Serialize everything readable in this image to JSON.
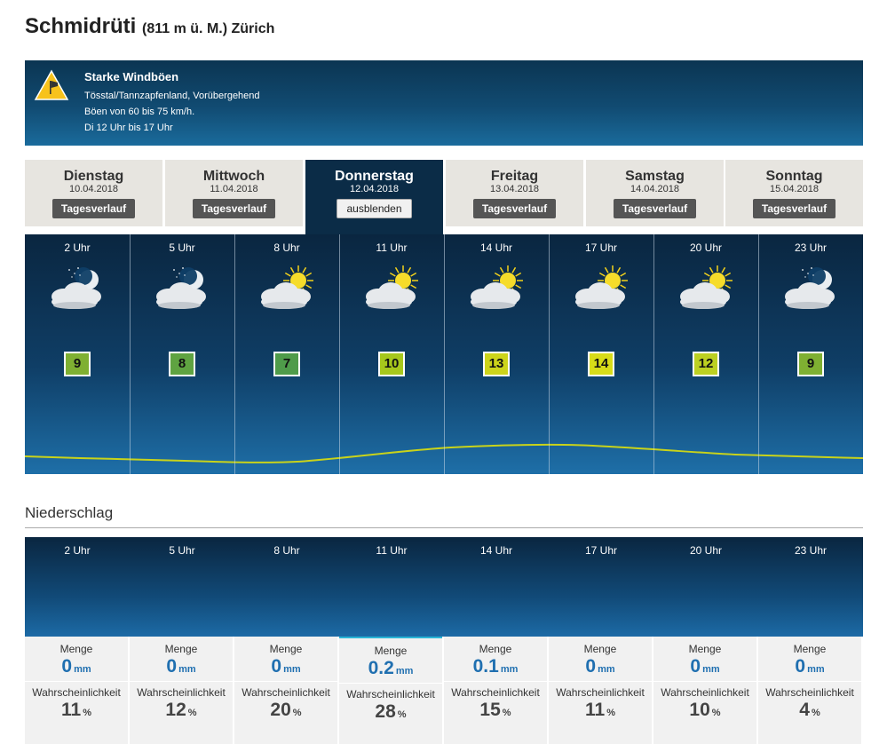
{
  "header": {
    "location": "Schmidrüti",
    "sub": "(811 m ü. M.) Zürich"
  },
  "warning": {
    "icon": "wind-warning-icon",
    "title": "Starke Windböen",
    "line1": "Tösstal/Tannzapfenland, Vorübergehend",
    "line2": "Böen von 60 bis 75 km/h.",
    "line3": "Di 12 Uhr bis 17 Uhr"
  },
  "days": [
    {
      "name": "Dienstag",
      "date": "10.04.2018",
      "button": "Tagesverlauf",
      "active": false
    },
    {
      "name": "Mittwoch",
      "date": "11.04.2018",
      "button": "Tagesverlauf",
      "active": false
    },
    {
      "name": "Donnerstag",
      "date": "12.04.2018",
      "button": "ausblenden",
      "active": true
    },
    {
      "name": "Freitag",
      "date": "13.04.2018",
      "button": "Tagesverlauf",
      "active": false
    },
    {
      "name": "Samstag",
      "date": "14.04.2018",
      "button": "Tagesverlauf",
      "active": false
    },
    {
      "name": "Sonntag",
      "date": "15.04.2018",
      "button": "Tagesverlauf",
      "active": false
    }
  ],
  "hours": [
    {
      "time": "2 Uhr",
      "icon": "cloudy-night-icon",
      "temp": "9",
      "color": "#7fb032"
    },
    {
      "time": "5 Uhr",
      "icon": "cloudy-night-icon",
      "temp": "8",
      "color": "#5fa341"
    },
    {
      "time": "8 Uhr",
      "icon": "partly-sunny-icon",
      "temp": "7",
      "color": "#4f9b4a"
    },
    {
      "time": "11 Uhr",
      "icon": "partly-sunny-icon",
      "temp": "10",
      "color": "#a6c71c"
    },
    {
      "time": "14 Uhr",
      "icon": "partly-sunny-icon",
      "temp": "13",
      "color": "#cdd41b"
    },
    {
      "time": "17 Uhr",
      "icon": "partly-sunny-icon",
      "temp": "14",
      "color": "#d8dc18"
    },
    {
      "time": "20 Uhr",
      "icon": "partly-sunny-icon",
      "temp": "12",
      "color": "#bcd021"
    },
    {
      "time": "23 Uhr",
      "icon": "cloudy-night-icon",
      "temp": "9",
      "color": "#7fb032"
    }
  ],
  "precipitation": {
    "title": "Niederschlag",
    "menge_label": "Menge",
    "prob_label": "Wahrscheinlichkeit",
    "menge_unit": "mm",
    "prob_unit": "%",
    "hours": [
      {
        "time": "2 Uhr",
        "menge": "0",
        "prob": "11"
      },
      {
        "time": "5 Uhr",
        "menge": "0",
        "prob": "12"
      },
      {
        "time": "8 Uhr",
        "menge": "0",
        "prob": "20"
      },
      {
        "time": "11 Uhr",
        "menge": "0.2",
        "prob": "28"
      },
      {
        "time": "14 Uhr",
        "menge": "0.1",
        "prob": "15"
      },
      {
        "time": "17 Uhr",
        "menge": "0",
        "prob": "11"
      },
      {
        "time": "20 Uhr",
        "menge": "0",
        "prob": "10"
      },
      {
        "time": "23 Uhr",
        "menge": "0",
        "prob": "4"
      }
    ]
  }
}
